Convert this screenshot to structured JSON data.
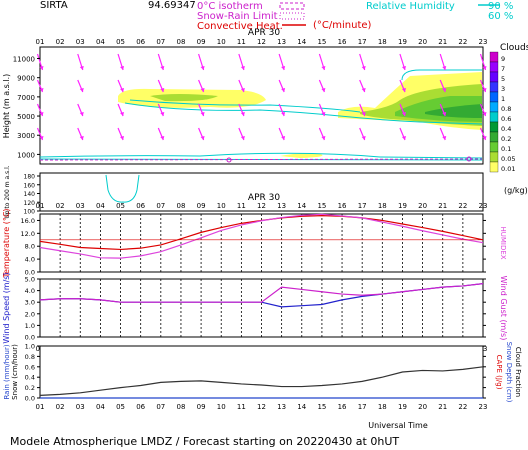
{
  "header": {
    "site": "SIRTA",
    "coords": "94.69347",
    "time_unit": "(°C/minute)",
    "legend_left": [
      "0°C isotherm",
      "Snow-Rain Limit",
      "Convective Heat."
    ],
    "legend_right_label": "Relative Humidity",
    "legend_right_values": [
      "90 %",
      "60 %"
    ]
  },
  "date_label": "APR 30",
  "hours": [
    "01",
    "02",
    "03",
    "04",
    "05",
    "06",
    "07",
    "08",
    "09",
    "10",
    "11",
    "12",
    "13",
    "14",
    "15",
    "16",
    "17",
    "18",
    "19",
    "20",
    "21",
    "22",
    "23"
  ],
  "clouds_scale": {
    "title": "Clouds",
    "unit": "(g/kg)",
    "levels": [
      "9",
      "7",
      "5",
      "3",
      "1",
      "0.8",
      "0.6",
      "0.4",
      "0.2",
      "0.1",
      "0.05",
      "0.01"
    ],
    "colors": [
      "#cc00cc",
      "#9900ff",
      "#6600ff",
      "#3333ff",
      "#0066ff",
      "#00aaff",
      "#00cccc",
      "#009933",
      "#33aa33",
      "#66cc33",
      "#aadd33",
      "#ffff66"
    ]
  },
  "colors": {
    "temperature": "#dd0000",
    "humidex": "#dd44dd",
    "wind_speed": "#2222cc",
    "wind_gust": "#cc22cc",
    "rain": "#2244cc",
    "snow": "#000000",
    "humidity": "#00cccc",
    "wind_arrows": "#ff22ff"
  },
  "chart_data": [
    {
      "type": "heatmap",
      "name": "cloud-panel",
      "ylabel": "Height (m a.s.l.)",
      "y_ticks": [
        11000,
        9000,
        7000,
        5000,
        3000,
        1000
      ],
      "lower_ylabel": "Up to 200 m a.s.l.",
      "lower_y_ticks": [
        180,
        160,
        140,
        120,
        100
      ]
    },
    {
      "type": "line",
      "name": "temperature",
      "ylabel": "Temperature (°C)",
      "y2label": "HUMIDEX",
      "y_ticks": [
        "16.0",
        "12.0",
        "8.0",
        "4.0",
        "0.0"
      ],
      "ylim": [
        0,
        18
      ],
      "x": [
        "01",
        "02",
        "03",
        "04",
        "05",
        "06",
        "07",
        "08",
        "09",
        "10",
        "11",
        "12",
        "13",
        "14",
        "15",
        "16",
        "17",
        "18",
        "19",
        "20",
        "21",
        "22",
        "23"
      ],
      "series": [
        {
          "name": "Temperature",
          "values": [
            9.5,
            8.6,
            7.6,
            7.3,
            7.0,
            7.4,
            8.4,
            10.3,
            12.3,
            13.8,
            15.1,
            16.0,
            16.8,
            17.3,
            17.5,
            17.3,
            16.8,
            16.0,
            14.9,
            13.8,
            12.6,
            11.3,
            10.0
          ]
        },
        {
          "name": "HUMIDEX",
          "values": [
            7.6,
            6.6,
            5.6,
            4.4,
            4.3,
            5.0,
            6.3,
            8.4,
            10.6,
            12.9,
            14.6,
            15.9,
            16.9,
            17.6,
            17.9,
            17.4,
            16.8,
            15.5,
            14.2,
            12.8,
            11.5,
            10.2,
            9.1
          ]
        }
      ]
    },
    {
      "type": "line",
      "name": "wind",
      "ylabel": "Wind Speed (m/s)",
      "y2label": "Wind Gust (m/s)",
      "y_ticks": [
        "5.0",
        "4.0",
        "3.0",
        "2.0",
        "1.0",
        "0.0"
      ],
      "ylim": [
        0,
        5
      ],
      "x": [
        "01",
        "02",
        "03",
        "04",
        "05",
        "06",
        "07",
        "08",
        "09",
        "10",
        "11",
        "12",
        "13",
        "14",
        "15",
        "16",
        "17",
        "18",
        "19",
        "20",
        "21",
        "22",
        "23"
      ],
      "series": [
        {
          "name": "Wind Speed",
          "values": [
            3.2,
            3.3,
            3.3,
            3.2,
            3.0,
            3.0,
            3.0,
            3.0,
            3.0,
            3.0,
            3.0,
            3.0,
            2.6,
            2.7,
            2.8,
            3.2,
            3.5,
            3.7,
            3.9,
            4.1,
            4.3,
            4.4,
            4.6
          ]
        },
        {
          "name": "Wind Gust",
          "values": [
            3.2,
            3.3,
            3.3,
            3.2,
            3.0,
            3.0,
            3.0,
            3.0,
            3.0,
            3.0,
            3.0,
            3.0,
            4.3,
            4.1,
            3.9,
            3.7,
            3.6,
            3.7,
            3.9,
            4.1,
            4.3,
            4.4,
            4.6
          ]
        }
      ]
    },
    {
      "type": "line",
      "name": "precipitation",
      "ylabel": "Rain (mm/hour)",
      "ylabel2": "Snow (cm/hour)",
      "y2label": "CAPE (J/g)",
      "y2label2": "Snow Depth (cm)",
      "y2label3": "Cloud Fraction",
      "y_ticks": [
        "1.0",
        "0.8",
        "0.6",
        "0.4",
        "0.2",
        "0.0"
      ],
      "ylim": [
        0,
        1
      ],
      "x": [
        "01",
        "02",
        "03",
        "04",
        "05",
        "06",
        "07",
        "08",
        "09",
        "10",
        "11",
        "12",
        "13",
        "14",
        "15",
        "16",
        "17",
        "18",
        "19",
        "20",
        "21",
        "22",
        "23"
      ],
      "series": [
        {
          "name": "Cloud Fraction",
          "values": [
            0.05,
            0.07,
            0.1,
            0.15,
            0.2,
            0.24,
            0.3,
            0.32,
            0.33,
            0.3,
            0.27,
            0.25,
            0.22,
            0.22,
            0.24,
            0.27,
            0.32,
            0.4,
            0.5,
            0.53,
            0.52,
            0.55,
            0.6
          ]
        },
        {
          "name": "Rain",
          "values": [
            0,
            0,
            0,
            0,
            0,
            0,
            0,
            0,
            0,
            0,
            0,
            0,
            0,
            0,
            0,
            0,
            0,
            0,
            0,
            0,
            0,
            0,
            0
          ]
        }
      ],
      "xlabel": "Universal Time"
    }
  ],
  "footer": {
    "title": "Modele Atmospherique LMDZ / Forecast starting on 20220430 at 0hUT"
  }
}
